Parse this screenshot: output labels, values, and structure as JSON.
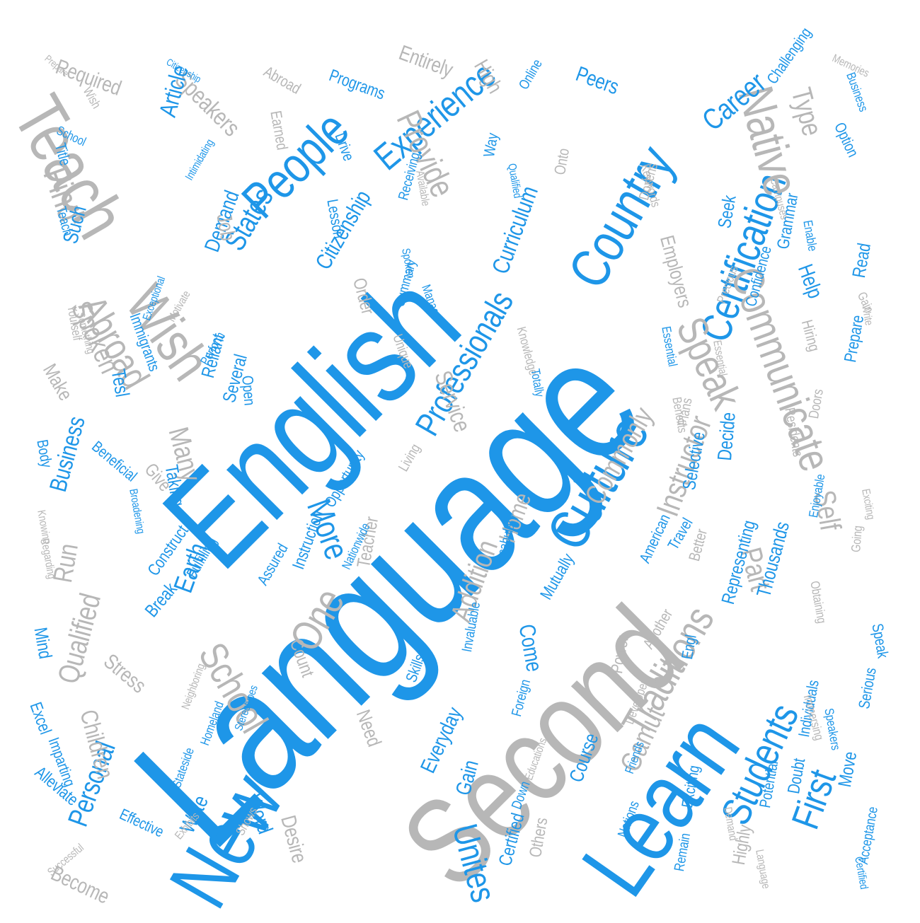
{
  "colors": {
    "blue": "#1e96e8",
    "gray": "#b7b7b7"
  },
  "words": [
    {
      "text": "Language",
      "color": "blue"
    },
    {
      "text": "English",
      "color": "blue"
    },
    {
      "text": "Second",
      "color": "gray"
    },
    {
      "text": "Teach",
      "color": "gray"
    },
    {
      "text": "Learn",
      "color": "blue"
    },
    {
      "text": "New",
      "color": "blue"
    },
    {
      "text": "Country",
      "color": "blue"
    },
    {
      "text": "Culture",
      "color": "blue"
    },
    {
      "text": "People",
      "color": "blue"
    },
    {
      "text": "Certification",
      "color": "blue"
    },
    {
      "text": "Native",
      "color": "gray"
    },
    {
      "text": "Professionals",
      "color": "blue"
    },
    {
      "text": "Experience",
      "color": "blue"
    },
    {
      "text": "Wish",
      "color": "gray"
    },
    {
      "text": "Students",
      "color": "blue"
    },
    {
      "text": "Communicate",
      "color": "gray"
    },
    {
      "text": "Speak",
      "color": "gray"
    },
    {
      "text": "Traditions",
      "color": "gray"
    },
    {
      "text": "School",
      "color": "gray"
    },
    {
      "text": "One",
      "color": "gray"
    },
    {
      "text": "More",
      "color": "blue"
    },
    {
      "text": "Abroad",
      "color": "gray"
    },
    {
      "text": "Unites",
      "color": "blue"
    },
    {
      "text": "First",
      "color": "blue"
    },
    {
      "text": "Personal",
      "color": "blue"
    },
    {
      "text": "States",
      "color": "blue"
    },
    {
      "text": "Provide",
      "color": "gray"
    },
    {
      "text": "Career",
      "color": "blue"
    },
    {
      "text": "Instructor",
      "color": "gray"
    },
    {
      "text": "Find",
      "color": "gray"
    },
    {
      "text": "Speakers",
      "color": "gray"
    },
    {
      "text": "Type",
      "color": "gray"
    },
    {
      "text": "Article",
      "color": "blue"
    },
    {
      "text": "Curriculum",
      "color": "blue"
    },
    {
      "text": "Citizenship",
      "color": "blue"
    },
    {
      "text": "Addition",
      "color": "gray"
    },
    {
      "text": "Home",
      "color": "gray"
    },
    {
      "text": "Commonly",
      "color": "gray"
    },
    {
      "text": "Service",
      "color": "gray"
    },
    {
      "text": "Children",
      "color": "gray"
    },
    {
      "text": "Qualified",
      "color": "gray"
    },
    {
      "text": "Business",
      "color": "blue"
    },
    {
      "text": "Spoken",
      "color": "gray"
    },
    {
      "text": "Many",
      "color": "gray"
    },
    {
      "text": "Earth",
      "color": "blue"
    },
    {
      "text": "Gamut",
      "color": "gray"
    },
    {
      "text": "Required",
      "color": "gray"
    },
    {
      "text": "Entirely",
      "color": "gray"
    },
    {
      "text": "Peers",
      "color": "blue"
    },
    {
      "text": "High",
      "color": "gray"
    },
    {
      "text": "Such",
      "color": "blue"
    },
    {
      "text": "Demand",
      "color": "blue"
    },
    {
      "text": "Job",
      "color": "gray"
    },
    {
      "text": "Help",
      "color": "blue"
    },
    {
      "text": "Employers",
      "color": "gray"
    },
    {
      "text": "Seek",
      "color": "blue"
    },
    {
      "text": "Decide",
      "color": "blue"
    },
    {
      "text": "Self",
      "color": "gray"
    },
    {
      "text": "Part",
      "color": "gray"
    },
    {
      "text": "Thousands",
      "color": "blue"
    },
    {
      "text": "Representing",
      "color": "blue"
    },
    {
      "text": "Selective",
      "color": "blue"
    },
    {
      "text": "Come",
      "color": "blue"
    },
    {
      "text": "Course",
      "color": "blue"
    },
    {
      "text": "Everyday",
      "color": "blue"
    },
    {
      "text": "Gain",
      "color": "blue"
    },
    {
      "text": "Certified",
      "color": "blue"
    },
    {
      "text": "Write",
      "color": "blue"
    },
    {
      "text": "Desire",
      "color": "gray"
    },
    {
      "text": "Word",
      "color": "blue"
    },
    {
      "text": "Become",
      "color": "gray"
    },
    {
      "text": "Effective",
      "color": "blue"
    },
    {
      "text": "Alleviate",
      "color": "blue"
    },
    {
      "text": "Excel",
      "color": "blue"
    },
    {
      "text": "Stress",
      "color": "gray"
    },
    {
      "text": "Mind",
      "color": "blue"
    },
    {
      "text": "Run",
      "color": "gray"
    },
    {
      "text": "Break",
      "color": "blue"
    },
    {
      "text": "Construct",
      "color": "blue"
    },
    {
      "text": "Fulfilling",
      "color": "blue"
    },
    {
      "text": "Assured",
      "color": "blue"
    },
    {
      "text": "Count",
      "color": "gray"
    },
    {
      "text": "Need",
      "color": "gray"
    },
    {
      "text": "Taking",
      "color": "blue"
    },
    {
      "text": "Give",
      "color": "gray"
    },
    {
      "text": "Beneficial",
      "color": "blue"
    },
    {
      "text": "Body",
      "color": "blue"
    },
    {
      "text": "Reliant",
      "color": "blue"
    },
    {
      "text": "Several",
      "color": "blue"
    },
    {
      "text": "Tesl",
      "color": "blue"
    },
    {
      "text": "Teacher",
      "color": "gray"
    },
    {
      "text": "Make",
      "color": "gray"
    },
    {
      "text": "Immigrants",
      "color": "blue"
    },
    {
      "text": "Open",
      "color": "blue"
    },
    {
      "text": "Order",
      "color": "gray"
    },
    {
      "text": "Summary",
      "color": "blue"
    },
    {
      "text": "Instruction",
      "color": "blue"
    },
    {
      "text": "Opportunity",
      "color": "blue"
    },
    {
      "text": "Living",
      "color": "gray"
    },
    {
      "text": "Nationwide",
      "color": "blue"
    },
    {
      "text": "Mutually",
      "color": "blue"
    },
    {
      "text": "Travel",
      "color": "blue"
    },
    {
      "text": "Confidence",
      "color": "blue"
    },
    {
      "text": "Grammar",
      "color": "blue"
    },
    {
      "text": "Hiring",
      "color": "gray"
    },
    {
      "text": "Prepare",
      "color": "blue"
    },
    {
      "text": "Read",
      "color": "blue"
    },
    {
      "text": "Move",
      "color": "blue"
    },
    {
      "text": "Doubt",
      "color": "blue"
    },
    {
      "text": "Serious",
      "color": "blue"
    },
    {
      "text": "Individuals",
      "color": "blue"
    },
    {
      "text": "Exciting",
      "color": "blue"
    },
    {
      "text": "Highly",
      "color": "gray"
    },
    {
      "text": "Potential",
      "color": "blue"
    },
    {
      "text": "Acceptance",
      "color": "blue"
    },
    {
      "text": "Remain",
      "color": "blue"
    },
    {
      "text": "Nations",
      "color": "blue"
    },
    {
      "text": "Others",
      "color": "gray"
    },
    {
      "text": "Down",
      "color": "blue"
    },
    {
      "text": "Skills",
      "color": "blue"
    },
    {
      "text": "Foreign",
      "color": "blue"
    },
    {
      "text": "Another",
      "color": "gray"
    },
    {
      "text": "Engl",
      "color": "blue"
    },
    {
      "text": "Vocabulary",
      "color": "blue"
    },
    {
      "text": "Invaluable",
      "color": "blue"
    },
    {
      "text": "Power",
      "color": "gray"
    },
    {
      "text": "American",
      "color": "blue"
    },
    {
      "text": "Better",
      "color": "gray"
    },
    {
      "text": "Programs",
      "color": "blue"
    },
    {
      "text": "Online",
      "color": "blue"
    },
    {
      "text": "Abroad",
      "color": "gray"
    },
    {
      "text": "Drive",
      "color": "blue"
    },
    {
      "text": "Earned",
      "color": "gray"
    },
    {
      "text": "Title",
      "color": "blue"
    },
    {
      "text": "Receiving",
      "color": "blue"
    },
    {
      "text": "Way",
      "color": "blue"
    },
    {
      "text": "Onto",
      "color": "gray"
    },
    {
      "text": "Lesson",
      "color": "blue"
    },
    {
      "text": "Dozens",
      "color": "gray"
    },
    {
      "text": "Challenging",
      "color": "blue"
    },
    {
      "text": "Memories",
      "color": "gray"
    },
    {
      "text": "Business",
      "color": "blue"
    },
    {
      "text": "Option",
      "color": "blue"
    },
    {
      "text": "Gain",
      "color": "gray"
    },
    {
      "text": "Precious",
      "color": "gray"
    },
    {
      "text": "Knowledge",
      "color": "gray"
    },
    {
      "text": "Unique",
      "color": "gray"
    },
    {
      "text": "Manage",
      "color": "blue"
    },
    {
      "text": "Totally",
      "color": "blue"
    },
    {
      "text": "Plans",
      "color": "gray"
    },
    {
      "text": "Essential",
      "color": "blue"
    },
    {
      "text": "Residents",
      "color": "gray"
    },
    {
      "text": "Doors",
      "color": "gray"
    },
    {
      "text": "Enjoyable",
      "color": "blue"
    },
    {
      "text": "Going",
      "color": "gray"
    },
    {
      "text": "Immersing",
      "color": "gray"
    },
    {
      "text": "Speakers",
      "color": "blue"
    },
    {
      "text": "Obtaining",
      "color": "gray"
    },
    {
      "text": "Speak",
      "color": "blue"
    },
    {
      "text": "Developer",
      "color": "gray"
    },
    {
      "text": "Friends",
      "color": "blue"
    },
    {
      "text": "Educations",
      "color": "gray"
    },
    {
      "text": "Homeland",
      "color": "blue"
    },
    {
      "text": "Stereotypes",
      "color": "blue"
    },
    {
      "text": "Neighboring",
      "color": "gray"
    },
    {
      "text": "Imparting",
      "color": "blue"
    },
    {
      "text": "Successful",
      "color": "gray"
    },
    {
      "text": "Exhibits",
      "color": "gray"
    },
    {
      "text": "Shows",
      "color": "gray"
    },
    {
      "text": "Stateside",
      "color": "blue"
    },
    {
      "text": "Knowing",
      "color": "gray"
    },
    {
      "text": "Broadening",
      "color": "blue"
    },
    {
      "text": "Regarding",
      "color": "gray"
    },
    {
      "text": "Exceptional",
      "color": "blue"
    },
    {
      "text": "Perform",
      "color": "blue"
    },
    {
      "text": "Motivate",
      "color": "gray"
    },
    {
      "text": "Something",
      "color": "gray"
    },
    {
      "text": "Yourself",
      "color": "gray"
    },
    {
      "text": "Intimidating",
      "color": "blue"
    },
    {
      "text": "Teach",
      "color": "blue"
    },
    {
      "text": "School",
      "color": "blue"
    },
    {
      "text": "Prepare",
      "color": "gray"
    },
    {
      "text": "Citizenship",
      "color": "blue"
    },
    {
      "text": "Wish",
      "color": "gray"
    },
    {
      "text": "Campuses",
      "color": "gray"
    },
    {
      "text": "Keywords",
      "color": "gray"
    },
    {
      "text": "Enable",
      "color": "blue"
    },
    {
      "text": "Qualified",
      "color": "blue"
    },
    {
      "text": "Available",
      "color": "gray"
    },
    {
      "text": "Spoken",
      "color": "blue"
    },
    {
      "text": "Write",
      "color": "gray"
    },
    {
      "text": "Essential",
      "color": "gray"
    },
    {
      "text": "Benefits",
      "color": "gray"
    },
    {
      "text": "Exciting",
      "color": "gray"
    },
    {
      "text": "Certified",
      "color": "blue"
    },
    {
      "text": "Language",
      "color": "gray"
    },
    {
      "text": "Demand",
      "color": "gray"
    }
  ]
}
